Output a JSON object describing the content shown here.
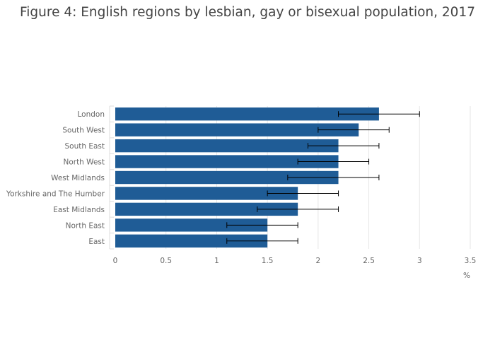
{
  "chart_data": {
    "type": "bar",
    "orientation": "horizontal",
    "title": "Figure 4: English regions by lesbian, gay or bisexual population, 2017",
    "xlabel": "%",
    "ylabel": "",
    "xlim": [
      0,
      3.5
    ],
    "x_ticks": [
      "0",
      "0.5",
      "1",
      "1.5",
      "2",
      "2.5",
      "3",
      "3.5"
    ],
    "grid": "vertical",
    "bar_color": "#1f5c96",
    "error_bar_color": "#000000",
    "categories": [
      "London",
      "South West",
      "South East",
      "North West",
      "West Midlands",
      "Yorkshire and The Humber",
      "East Midlands",
      "North East",
      "East"
    ],
    "values": [
      2.6,
      2.4,
      2.2,
      2.2,
      2.2,
      1.8,
      1.8,
      1.5,
      1.5
    ],
    "error_low": [
      2.2,
      2.0,
      1.9,
      1.8,
      1.7,
      1.5,
      1.4,
      1.1,
      1.1
    ],
    "error_high": [
      3.0,
      2.7,
      2.6,
      2.5,
      2.6,
      2.2,
      2.2,
      1.8,
      1.8
    ]
  }
}
